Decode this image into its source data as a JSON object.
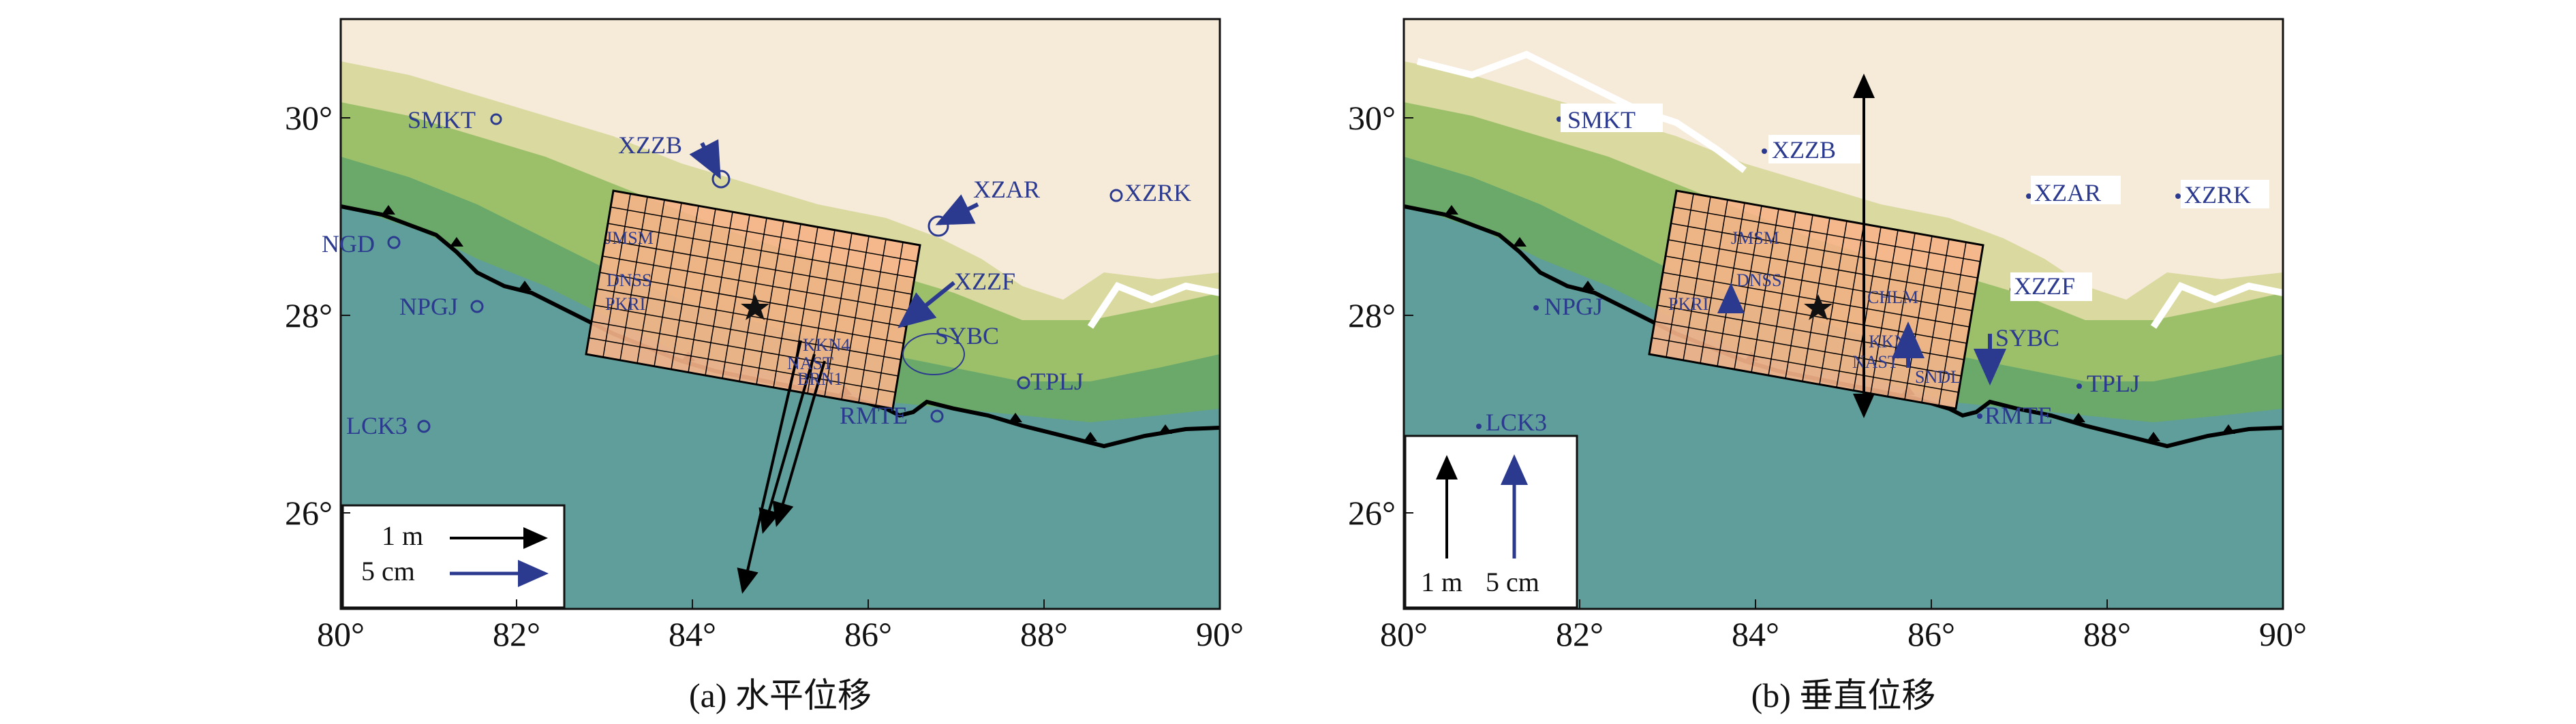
{
  "panels": [
    {
      "id": "a",
      "caption": "(a) 水平位移",
      "x_ticks": [
        "80°",
        "82°",
        "84°",
        "86°",
        "88°",
        "90°"
      ],
      "y_ticks": [
        "30°",
        "28°",
        "26°"
      ],
      "stations": [
        "SMKT",
        "XZZB",
        "XZAR",
        "XZRK",
        "NGD",
        "NPGJ",
        "XZZF",
        "SYBC",
        "TPLJ",
        "RMTE",
        "LCK3",
        "JMSM",
        "DNSS",
        "PKRI",
        "KKN4",
        "NAST",
        "BRN1"
      ],
      "legend": {
        "black_label": "1 m",
        "blue_label": "5 cm"
      }
    },
    {
      "id": "b",
      "caption": "(b) 垂直位移",
      "x_ticks": [
        "80°",
        "82°",
        "84°",
        "86°",
        "88°",
        "90°"
      ],
      "y_ticks": [
        "30°",
        "28°",
        "26°"
      ],
      "stations": [
        "SMKT",
        "XZZB",
        "XZAR",
        "XZRK",
        "NPGJ",
        "XZZF",
        "SYBC",
        "TPLJ",
        "RMTE",
        "LCK3",
        "JMSM",
        "DNSS",
        "PKRI",
        "KKN4",
        "NAST",
        "CHLM",
        "SNDL"
      ],
      "legend": {
        "black_label": "1 m",
        "blue_label": "5 cm"
      }
    }
  ],
  "colors": {
    "station": "#2b3a8f",
    "vector_black": "#000000",
    "vector_blue": "#2b3a8f",
    "fault": "#000000",
    "sea": "#5f9e9a",
    "lowland": "#63a57a",
    "foothills": "#7fb35a",
    "highland": "#f6ead9",
    "grid_patch": "#f6b48a"
  }
}
